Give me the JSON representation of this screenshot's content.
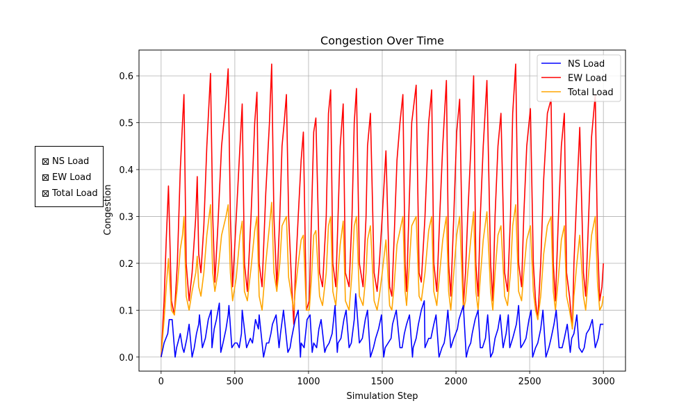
{
  "chart_data": {
    "type": "line",
    "title": "Congestion Over Time",
    "xlabel": "Simulation Step",
    "ylabel": "Congestion",
    "xlim": [
      -150,
      3150
    ],
    "ylim": [
      -0.03,
      0.655
    ],
    "xticks": [
      0,
      500,
      1000,
      1500,
      2000,
      2500,
      3000
    ],
    "yticks": [
      0.0,
      0.1,
      0.2,
      0.3,
      0.4,
      0.5,
      0.6
    ],
    "xtick_labels": [
      "0",
      "500",
      "1000",
      "1500",
      "2000",
      "2500",
      "3000"
    ],
    "ytick_labels": [
      "0.0",
      "0.1",
      "0.2",
      "0.3",
      "0.4",
      "0.5",
      "0.6"
    ],
    "grid": true,
    "legend_position": "top-right",
    "series": [
      {
        "name": "NS Load",
        "color": "#0000ff",
        "x": [
          0,
          20,
          45,
          55,
          75,
          95,
          105,
          130,
          145,
          155,
          175,
          190,
          210,
          225,
          240,
          255,
          260,
          280,
          300,
          320,
          340,
          345,
          360,
          375,
          395,
          405,
          420,
          440,
          455,
          460,
          480,
          500,
          515,
          530,
          545,
          550,
          580,
          605,
          620,
          640,
          660,
          665,
          695,
          715,
          730,
          745,
          755,
          780,
          800,
          810,
          830,
          860,
          875,
          885,
          910,
          930,
          945,
          950,
          970,
          990,
          1010,
          1025,
          1035,
          1055,
          1070,
          1085,
          1110,
          1120,
          1140,
          1160,
          1180,
          1195,
          1200,
          1220,
          1240,
          1255,
          1275,
          1290,
          1310,
          1320,
          1345,
          1365,
          1385,
          1400,
          1420,
          1440,
          1455,
          1475,
          1495,
          1510,
          1520,
          1540,
          1560,
          1570,
          1595,
          1620,
          1635,
          1650,
          1665,
          1685,
          1705,
          1710,
          1730,
          1745,
          1765,
          1785,
          1790,
          1815,
          1830,
          1850,
          1865,
          1885,
          1905,
          1920,
          1930,
          1945,
          1965,
          1985,
          2010,
          2020,
          2050,
          2070,
          2085,
          2100,
          2110,
          2130,
          2150,
          2165,
          2180,
          2200,
          2215,
          2235,
          2250,
          2265,
          2285,
          2300,
          2320,
          2340,
          2355,
          2365,
          2385,
          2410,
          2425,
          2440,
          2460,
          2475,
          2495,
          2510,
          2520,
          2540,
          2555,
          2575,
          2590,
          2610,
          2630,
          2645,
          2665,
          2680,
          2700,
          2720,
          2735,
          2755,
          2775,
          2785,
          2800,
          2820,
          2835,
          2855,
          2870,
          2885,
          2905,
          2925,
          2945,
          2965,
          2980,
          3000
        ],
        "values": [
          0.0,
          0.03,
          0.05,
          0.08,
          0.08,
          0.0,
          0.02,
          0.05,
          0.02,
          0.01,
          0.04,
          0.07,
          0.0,
          0.02,
          0.05,
          0.07,
          0.09,
          0.02,
          0.04,
          0.08,
          0.1,
          0.02,
          0.06,
          0.08,
          0.115,
          0.01,
          0.03,
          0.06,
          0.09,
          0.11,
          0.02,
          0.03,
          0.03,
          0.02,
          0.05,
          0.1,
          0.02,
          0.04,
          0.03,
          0.08,
          0.06,
          0.09,
          0.0,
          0.03,
          0.03,
          0.05,
          0.07,
          0.09,
          0.02,
          0.05,
          0.1,
          0.01,
          0.02,
          0.04,
          0.08,
          0.1,
          0.0,
          0.03,
          0.02,
          0.08,
          0.09,
          0.01,
          0.03,
          0.02,
          0.06,
          0.08,
          0.01,
          0.02,
          0.03,
          0.05,
          0.11,
          0.01,
          0.03,
          0.04,
          0.08,
          0.1,
          0.02,
          0.03,
          0.08,
          0.135,
          0.03,
          0.04,
          0.08,
          0.1,
          0.0,
          0.02,
          0.04,
          0.06,
          0.09,
          0.0,
          0.02,
          0.03,
          0.04,
          0.07,
          0.1,
          0.02,
          0.02,
          0.05,
          0.07,
          0.09,
          0.0,
          0.02,
          0.04,
          0.07,
          0.1,
          0.12,
          0.02,
          0.04,
          0.04,
          0.07,
          0.09,
          0.0,
          0.02,
          0.03,
          0.05,
          0.1,
          0.02,
          0.04,
          0.06,
          0.08,
          0.11,
          0.0,
          0.02,
          0.03,
          0.05,
          0.08,
          0.1,
          0.02,
          0.02,
          0.04,
          0.09,
          0.0,
          0.01,
          0.04,
          0.06,
          0.09,
          0.02,
          0.05,
          0.09,
          0.02,
          0.04,
          0.07,
          0.11,
          0.02,
          0.03,
          0.04,
          0.08,
          0.1,
          0.0,
          0.02,
          0.03,
          0.06,
          0.1,
          0.0,
          0.02,
          0.04,
          0.07,
          0.1,
          0.02,
          0.02,
          0.04,
          0.07,
          0.01,
          0.04,
          0.05,
          0.09,
          0.02,
          0.01,
          0.02,
          0.05,
          0.06,
          0.08,
          0.02,
          0.04,
          0.07,
          0.07
        ]
      },
      {
        "name": "EW Load",
        "color": "#ff0000",
        "x": [
          0,
          20,
          35,
          50,
          70,
          90,
          110,
          130,
          145,
          155,
          170,
          190,
          210,
          235,
          245,
          255,
          270,
          290,
          310,
          335,
          350,
          365,
          385,
          410,
          440,
          455,
          470,
          485,
          510,
          535,
          550,
          565,
          585,
          610,
          635,
          650,
          665,
          685,
          710,
          735,
          750,
          765,
          785,
          805,
          820,
          835,
          850,
          865,
          885,
          900,
          910,
          930,
          950,
          965,
          985,
          1005,
          1020,
          1035,
          1050,
          1075,
          1095,
          1120,
          1135,
          1150,
          1165,
          1185,
          1200,
          1215,
          1235,
          1250,
          1275,
          1295,
          1310,
          1325,
          1345,
          1370,
          1390,
          1400,
          1420,
          1445,
          1465,
          1480,
          1500,
          1525,
          1550,
          1565,
          1580,
          1600,
          1620,
          1640,
          1655,
          1665,
          1680,
          1700,
          1730,
          1750,
          1765,
          1790,
          1815,
          1835,
          1850,
          1870,
          1890,
          1910,
          1935,
          1950,
          1965,
          1985,
          2005,
          2025,
          2050,
          2065,
          2080,
          2100,
          2120,
          2135,
          2150,
          2165,
          2185,
          2210,
          2235,
          2250,
          2265,
          2285,
          2305,
          2330,
          2350,
          2370,
          2385,
          2405,
          2425,
          2445,
          2460,
          2480,
          2505,
          2525,
          2540,
          2555,
          2575,
          2595,
          2620,
          2645,
          2660,
          2675,
          2695,
          2715,
          2735,
          2750,
          2770,
          2790,
          2800,
          2820,
          2840,
          2865,
          2880,
          2900,
          2920,
          2945,
          2960,
          2975,
          2990,
          3000
        ],
        "values": [
          0.0,
          0.12,
          0.25,
          0.365,
          0.12,
          0.09,
          0.2,
          0.4,
          0.5,
          0.56,
          0.2,
          0.12,
          0.18,
          0.3,
          0.385,
          0.22,
          0.18,
          0.28,
          0.45,
          0.605,
          0.3,
          0.16,
          0.28,
          0.45,
          0.55,
          0.615,
          0.3,
          0.15,
          0.3,
          0.45,
          0.54,
          0.2,
          0.14,
          0.3,
          0.5,
          0.565,
          0.2,
          0.15,
          0.35,
          0.5,
          0.625,
          0.3,
          0.15,
          0.3,
          0.45,
          0.5,
          0.56,
          0.3,
          0.16,
          0.07,
          0.17,
          0.3,
          0.42,
          0.48,
          0.1,
          0.12,
          0.3,
          0.48,
          0.51,
          0.18,
          0.15,
          0.3,
          0.52,
          0.57,
          0.2,
          0.15,
          0.3,
          0.45,
          0.54,
          0.18,
          0.15,
          0.3,
          0.5,
          0.573,
          0.2,
          0.15,
          0.3,
          0.45,
          0.52,
          0.18,
          0.14,
          0.2,
          0.3,
          0.44,
          0.15,
          0.13,
          0.25,
          0.42,
          0.5,
          0.56,
          0.2,
          0.14,
          0.3,
          0.5,
          0.58,
          0.18,
          0.16,
          0.3,
          0.5,
          0.57,
          0.2,
          0.14,
          0.3,
          0.45,
          0.59,
          0.2,
          0.13,
          0.3,
          0.48,
          0.55,
          0.11,
          0.18,
          0.3,
          0.44,
          0.6,
          0.2,
          0.13,
          0.3,
          0.45,
          0.59,
          0.2,
          0.12,
          0.3,
          0.45,
          0.52,
          0.18,
          0.14,
          0.3,
          0.52,
          0.625,
          0.2,
          0.15,
          0.3,
          0.45,
          0.53,
          0.2,
          0.12,
          0.08,
          0.2,
          0.38,
          0.52,
          0.55,
          0.2,
          0.12,
          0.3,
          0.45,
          0.52,
          0.18,
          0.13,
          0.06,
          0.2,
          0.35,
          0.49,
          0.18,
          0.13,
          0.3,
          0.47,
          0.56,
          0.25,
          0.12,
          0.15,
          0.2
        ]
      },
      {
        "name": "Total Load",
        "color": "#ffa500",
        "x": [
          0,
          20,
          35,
          50,
          70,
          90,
          110,
          130,
          145,
          155,
          170,
          190,
          210,
          235,
          245,
          255,
          270,
          290,
          310,
          335,
          350,
          365,
          385,
          410,
          440,
          455,
          470,
          485,
          510,
          535,
          550,
          565,
          585,
          610,
          635,
          650,
          665,
          685,
          710,
          735,
          750,
          765,
          785,
          805,
          820,
          835,
          850,
          865,
          885,
          900,
          910,
          930,
          950,
          965,
          985,
          1005,
          1020,
          1035,
          1050,
          1075,
          1095,
          1120,
          1135,
          1150,
          1165,
          1185,
          1200,
          1215,
          1235,
          1250,
          1275,
          1295,
          1310,
          1325,
          1345,
          1370,
          1390,
          1400,
          1420,
          1445,
          1465,
          1480,
          1500,
          1525,
          1550,
          1565,
          1580,
          1600,
          1620,
          1640,
          1655,
          1665,
          1680,
          1700,
          1730,
          1750,
          1765,
          1790,
          1815,
          1835,
          1850,
          1870,
          1890,
          1910,
          1935,
          1950,
          1965,
          1985,
          2005,
          2025,
          2050,
          2065,
          2080,
          2100,
          2120,
          2135,
          2150,
          2165,
          2185,
          2210,
          2235,
          2250,
          2265,
          2285,
          2305,
          2330,
          2350,
          2370,
          2385,
          2405,
          2425,
          2445,
          2460,
          2480,
          2505,
          2525,
          2540,
          2555,
          2575,
          2595,
          2620,
          2645,
          2660,
          2675,
          2695,
          2715,
          2735,
          2750,
          2770,
          2790,
          2800,
          2820,
          2840,
          2865,
          2880,
          2900,
          2920,
          2945,
          2960,
          2975,
          2990,
          3000
        ],
        "values": [
          0.0,
          0.08,
          0.15,
          0.21,
          0.1,
          0.09,
          0.15,
          0.23,
          0.26,
          0.3,
          0.13,
          0.1,
          0.14,
          0.18,
          0.215,
          0.15,
          0.13,
          0.18,
          0.26,
          0.325,
          0.18,
          0.14,
          0.18,
          0.26,
          0.3,
          0.325,
          0.18,
          0.12,
          0.17,
          0.26,
          0.29,
          0.14,
          0.12,
          0.19,
          0.27,
          0.3,
          0.13,
          0.1,
          0.2,
          0.28,
          0.33,
          0.18,
          0.14,
          0.2,
          0.28,
          0.29,
          0.3,
          0.17,
          0.13,
          0.1,
          0.14,
          0.2,
          0.25,
          0.26,
          0.1,
          0.1,
          0.17,
          0.26,
          0.27,
          0.13,
          0.11,
          0.18,
          0.28,
          0.3,
          0.14,
          0.11,
          0.18,
          0.24,
          0.29,
          0.12,
          0.1,
          0.18,
          0.28,
          0.3,
          0.13,
          0.11,
          0.18,
          0.25,
          0.28,
          0.12,
          0.1,
          0.13,
          0.18,
          0.25,
          0.11,
          0.1,
          0.15,
          0.24,
          0.27,
          0.3,
          0.14,
          0.11,
          0.18,
          0.28,
          0.3,
          0.13,
          0.12,
          0.18,
          0.27,
          0.3,
          0.14,
          0.11,
          0.18,
          0.25,
          0.3,
          0.14,
          0.1,
          0.18,
          0.26,
          0.3,
          0.1,
          0.12,
          0.18,
          0.25,
          0.31,
          0.14,
          0.1,
          0.17,
          0.25,
          0.31,
          0.14,
          0.1,
          0.18,
          0.26,
          0.28,
          0.13,
          0.11,
          0.18,
          0.28,
          0.325,
          0.14,
          0.12,
          0.18,
          0.25,
          0.28,
          0.14,
          0.1,
          0.08,
          0.13,
          0.22,
          0.28,
          0.3,
          0.14,
          0.1,
          0.17,
          0.25,
          0.28,
          0.13,
          0.1,
          0.06,
          0.13,
          0.2,
          0.26,
          0.13,
          0.1,
          0.18,
          0.26,
          0.3,
          0.16,
          0.1,
          0.11,
          0.13
        ]
      }
    ]
  },
  "check_panel": {
    "items": [
      {
        "label": "NS Load",
        "checked": true
      },
      {
        "label": "EW Load",
        "checked": true
      },
      {
        "label": "Total Load",
        "checked": true
      }
    ]
  }
}
